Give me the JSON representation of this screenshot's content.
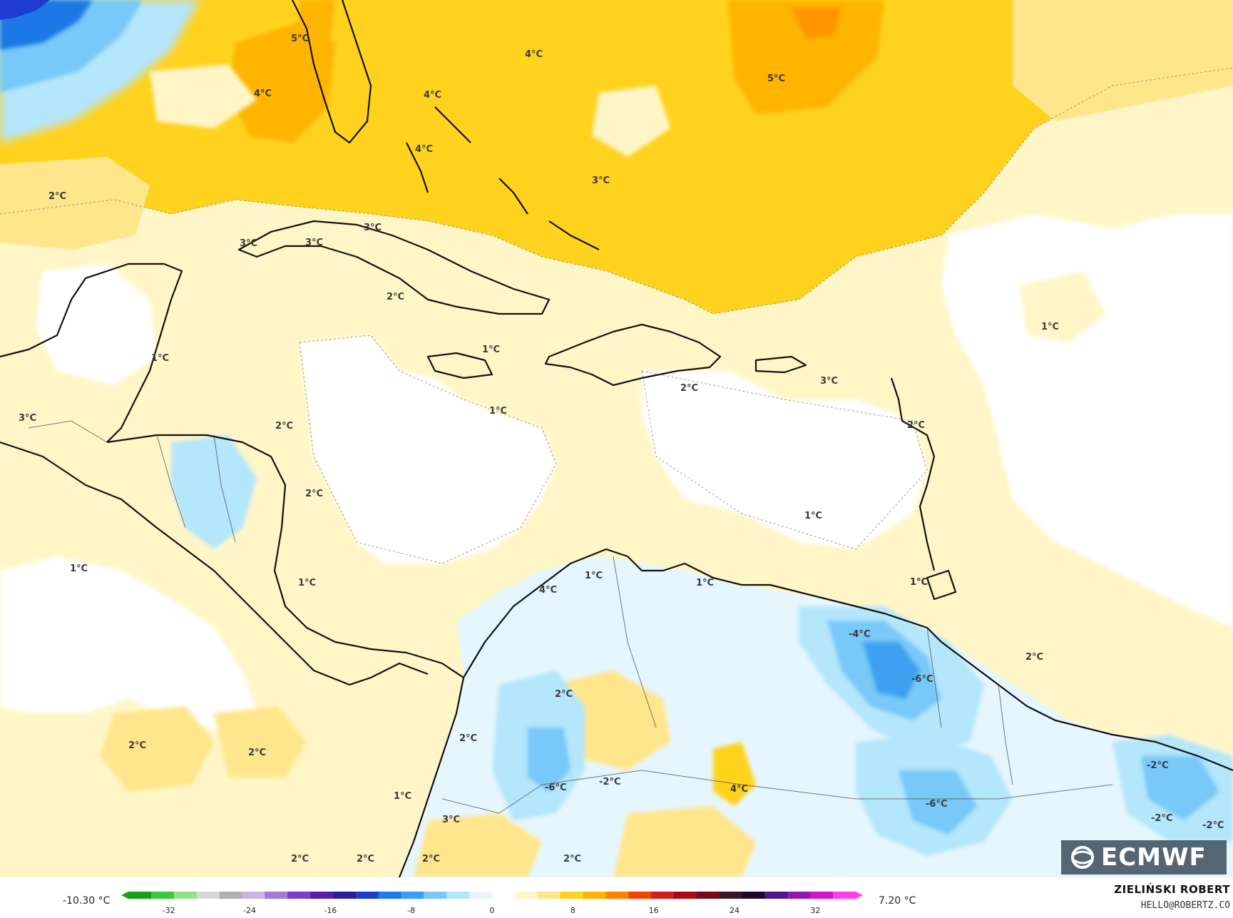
{
  "map": {
    "anomaly_labels": [
      {
        "text": "5°C"
      },
      {
        "text": "4°C"
      },
      {
        "text": "4°C"
      },
      {
        "text": "5°C"
      },
      {
        "text": "4°C"
      },
      {
        "text": "4°C"
      },
      {
        "text": "3°C"
      },
      {
        "text": "2°C"
      },
      {
        "text": "3°C"
      },
      {
        "text": "3°C"
      },
      {
        "text": "3°C"
      },
      {
        "text": "2°C"
      },
      {
        "text": "1°C"
      },
      {
        "text": "1°C"
      },
      {
        "text": "1°C"
      },
      {
        "text": "2°C"
      },
      {
        "text": "3°C"
      },
      {
        "text": "1°C"
      },
      {
        "text": "3°C"
      },
      {
        "text": "2°C"
      },
      {
        "text": "2°C"
      },
      {
        "text": "2°C"
      },
      {
        "text": "1°C"
      },
      {
        "text": "1°C"
      },
      {
        "text": "1°C"
      },
      {
        "text": "1°C"
      },
      {
        "text": "4°C"
      },
      {
        "text": "1°C"
      },
      {
        "text": "1°C"
      },
      {
        "text": "1°C"
      },
      {
        "text": "-4°C"
      },
      {
        "text": "-6°C"
      },
      {
        "text": "2°C"
      },
      {
        "text": "2°C"
      },
      {
        "text": "2°C"
      },
      {
        "text": "2°C"
      },
      {
        "text": "1°C"
      },
      {
        "text": "-6°C"
      },
      {
        "text": "-2°C"
      },
      {
        "text": "4°C"
      },
      {
        "text": "-6°C"
      },
      {
        "text": "-2°C"
      },
      {
        "text": "-2°C"
      },
      {
        "text": "-2°C"
      },
      {
        "text": "3°C"
      },
      {
        "text": "2°C"
      },
      {
        "text": "2°C"
      },
      {
        "text": "2°C"
      },
      {
        "text": "2°C"
      },
      {
        "text": "2°C"
      }
    ]
  },
  "colorbar": {
    "min_label": "-10.30 °C",
    "max_label": "7.20 °C",
    "ticks": [
      "-32",
      "-24",
      "-16",
      "-8",
      "0",
      "8",
      "16",
      "24",
      "32"
    ],
    "colors": [
      "#16a016",
      "#3cc83c",
      "#8ee08e",
      "#d6d6d6",
      "#b0b0b0",
      "#c8b4e6",
      "#a678d8",
      "#7a3ec8",
      "#5a1ea8",
      "#2a1e9a",
      "#1e3cd2",
      "#1e78e6",
      "#3ca0f0",
      "#78c8f8",
      "#b4e6fc",
      "#e6f6fe",
      "#ffffff",
      "#fff6c8",
      "#ffe68c",
      "#ffd21e",
      "#ffb400",
      "#ff8200",
      "#f04600",
      "#d21e1e",
      "#aa0a14",
      "#780a1e",
      "#3c1428",
      "#1e0a28",
      "#50148c",
      "#9614b4",
      "#d214c8",
      "#ff3cf0"
    ]
  },
  "branding": {
    "author": "ZIELIŃSKI ROBERT",
    "email": "HELLO@ROBERTZ.CO",
    "logo_text": "ECMWF"
  },
  "palette": {
    "ocean_base": "#fff6c8",
    "warm_1": "#ffe68c",
    "warm_2": "#ffd21e",
    "warm_3": "#ffb400",
    "neutral": "#ffffff",
    "cool_1": "#e6f6fe",
    "cool_2": "#b4e6fc",
    "cool_3": "#78c8f8",
    "cool_4": "#3ca0f0",
    "cold_deep": "#1e78e6",
    "cold_max": "#1e3cd2"
  }
}
